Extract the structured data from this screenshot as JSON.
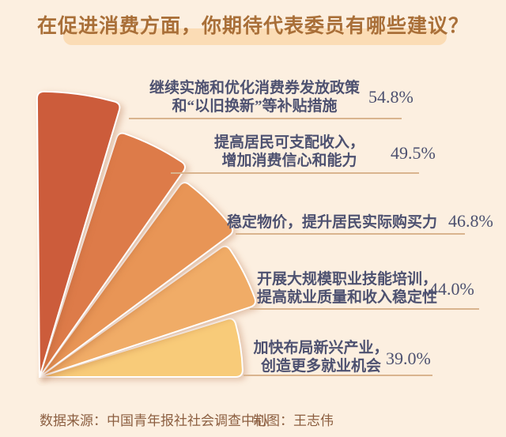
{
  "title": "在促进消费方面，你期待代表委员有哪些建议？",
  "colors": {
    "background": "#fcefe0",
    "title_text": "#a96f38",
    "title_highlight": "#fbdcb5",
    "label_text": "#4d5170",
    "leader_line": "#d9b48e",
    "footer_text": "#8c5f41",
    "petals": [
      "#cc5c3b",
      "#dd7b49",
      "#e89556",
      "#f0ac67",
      "#f8cb79"
    ]
  },
  "chart_data": {
    "type": "pie",
    "variant": "fan-rose (radius proportional to value, 5 sectors from 90° to 0°)",
    "title": "在促进消费方面，你期待代表委员有哪些建议？",
    "unit": "%",
    "legend": "none",
    "items": [
      {
        "label_lines": [
          "继续实施和优化消费券发放政策",
          "和“以旧换新”等补贴措施"
        ],
        "label": "继续实施和优化消费券发放政策和“以旧换新”等补贴措施",
        "value": 54.8,
        "pct_label": "54.8%",
        "color": "#cc5c3b"
      },
      {
        "label_lines": [
          "提高居民可支配收入，",
          "增加消费信心和能力"
        ],
        "label": "提高居民可支配收入，增加消费信心和能力",
        "value": 49.5,
        "pct_label": "49.5%",
        "color": "#dd7b49"
      },
      {
        "label_lines": [
          "稳定物价，提升居民实际购买力"
        ],
        "label": "稳定物价，提升居民实际购买力",
        "value": 46.8,
        "pct_label": "46.8%",
        "color": "#e89556"
      },
      {
        "label_lines": [
          "开展大规模职业技能培训，",
          "提高就业质量和收入稳定性"
        ],
        "label": "开展大规模职业技能培训，提高就业质量和收入稳定性",
        "value": 44.0,
        "pct_label": "44.0%",
        "color": "#f0ac67"
      },
      {
        "label_lines": [
          "加快布局新兴产业，",
          "创造更多就业机会"
        ],
        "label": "加快布局新兴产业，创造更多就业机会",
        "value": 39.0,
        "pct_label": "39.0%",
        "color": "#f8cb79"
      }
    ]
  },
  "footer": {
    "source": "数据来源：中国青年报社社会调查中心",
    "credit": "制图：王志伟"
  }
}
